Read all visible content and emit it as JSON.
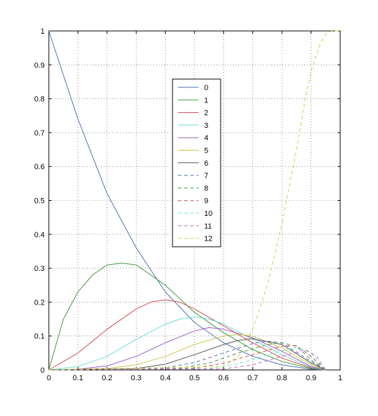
{
  "chart_data": {
    "type": "line",
    "title": "",
    "xlabel": "",
    "ylabel": "",
    "xlim": [
      0,
      1
    ],
    "ylim": [
      0,
      1
    ],
    "x_ticks": [
      "0",
      "0.1",
      "0.2",
      "0.3",
      "0.4",
      "0.5",
      "0.6",
      "0.7",
      "0.8",
      "0.9",
      "1"
    ],
    "y_ticks": [
      "0",
      "0.1",
      "0.2",
      "0.3",
      "0.4",
      "0.5",
      "0.6",
      "0.7",
      "0.8",
      "0.9",
      "1"
    ],
    "grid": true,
    "legend_position": "upper-center",
    "series": [
      {
        "name": "0",
        "style": "solid",
        "color": "#4a6fb5",
        "x": [
          0,
          0.1,
          0.2,
          0.3,
          0.4,
          0.5,
          0.6,
          0.7,
          0.8,
          0.9,
          0.95
        ],
        "y": [
          1,
          0.74,
          0.52,
          0.36,
          0.23,
          0.14,
          0.08,
          0.04,
          0.015,
          0.002,
          0
        ]
      },
      {
        "name": "1",
        "style": "solid",
        "color": "#3c9a3c",
        "x": [
          0,
          0.05,
          0.1,
          0.15,
          0.2,
          0.25,
          0.3,
          0.35,
          0.4,
          0.5,
          0.6,
          0.7,
          0.8,
          0.9,
          0.95
        ],
        "y": [
          0,
          0.15,
          0.23,
          0.28,
          0.31,
          0.315,
          0.31,
          0.28,
          0.25,
          0.17,
          0.11,
          0.06,
          0.025,
          0.004,
          0
        ]
      },
      {
        "name": "2",
        "style": "solid",
        "color": "#d24b4b",
        "x": [
          0,
          0.1,
          0.2,
          0.3,
          0.35,
          0.4,
          0.45,
          0.5,
          0.6,
          0.7,
          0.8,
          0.9,
          0.95
        ],
        "y": [
          0,
          0.05,
          0.12,
          0.18,
          0.2,
          0.207,
          0.2,
          0.18,
          0.13,
          0.08,
          0.035,
          0.006,
          0
        ]
      },
      {
        "name": "3",
        "style": "solid",
        "color": "#66e0cc",
        "x": [
          0,
          0.1,
          0.2,
          0.3,
          0.4,
          0.45,
          0.5,
          0.55,
          0.6,
          0.7,
          0.8,
          0.9,
          0.95
        ],
        "y": [
          0,
          0.01,
          0.04,
          0.09,
          0.135,
          0.15,
          0.157,
          0.15,
          0.135,
          0.09,
          0.045,
          0.008,
          0
        ]
      },
      {
        "name": "4",
        "style": "solid",
        "color": "#9a5acc",
        "x": [
          0,
          0.1,
          0.2,
          0.3,
          0.4,
          0.5,
          0.55,
          0.6,
          0.7,
          0.8,
          0.9,
          0.95
        ],
        "y": [
          0,
          0.002,
          0.012,
          0.04,
          0.08,
          0.115,
          0.125,
          0.12,
          0.095,
          0.055,
          0.01,
          0
        ]
      },
      {
        "name": "5",
        "style": "solid",
        "color": "#c9c94a",
        "x": [
          0,
          0.2,
          0.3,
          0.4,
          0.5,
          0.6,
          0.65,
          0.7,
          0.8,
          0.9,
          0.95
        ],
        "y": [
          0,
          0.004,
          0.015,
          0.04,
          0.075,
          0.1,
          0.105,
          0.1,
          0.065,
          0.015,
          0
        ]
      },
      {
        "name": "6",
        "style": "solid",
        "color": "#555555",
        "x": [
          0,
          0.3,
          0.4,
          0.5,
          0.6,
          0.65,
          0.7,
          0.8,
          0.9,
          0.95
        ],
        "y": [
          0,
          0.004,
          0.017,
          0.045,
          0.075,
          0.087,
          0.092,
          0.075,
          0.02,
          0
        ]
      },
      {
        "name": "7",
        "style": "dashed",
        "color": "#4a6fb5",
        "x": [
          0,
          0.4,
          0.5,
          0.6,
          0.7,
          0.75,
          0.8,
          0.9,
          0.95
        ],
        "y": [
          0,
          0.006,
          0.022,
          0.05,
          0.078,
          0.085,
          0.08,
          0.025,
          0
        ]
      },
      {
        "name": "8",
        "style": "dashed",
        "color": "#3c9a3c",
        "x": [
          0,
          0.45,
          0.55,
          0.65,
          0.75,
          0.8,
          0.85,
          0.9,
          0.95
        ],
        "y": [
          0,
          0.005,
          0.02,
          0.05,
          0.075,
          0.08,
          0.07,
          0.03,
          0
        ]
      },
      {
        "name": "9",
        "style": "dashed",
        "color": "#d24b4b",
        "x": [
          0,
          0.5,
          0.6,
          0.7,
          0.8,
          0.85,
          0.9,
          0.95
        ],
        "y": [
          0,
          0.005,
          0.02,
          0.045,
          0.07,
          0.072,
          0.04,
          0
        ]
      },
      {
        "name": "10",
        "style": "dashed",
        "color": "#66e0cc",
        "x": [
          0,
          0.55,
          0.65,
          0.75,
          0.85,
          0.9,
          0.95
        ],
        "y": [
          0,
          0.004,
          0.018,
          0.045,
          0.068,
          0.05,
          0
        ]
      },
      {
        "name": "11",
        "style": "dashed",
        "color": "#cc66cc",
        "x": [
          0,
          0.6,
          0.7,
          0.8,
          0.88,
          0.92,
          0.95
        ],
        "y": [
          0,
          0.003,
          0.015,
          0.04,
          0.06,
          0.04,
          0
        ]
      },
      {
        "name": "12",
        "style": "dashed",
        "color": "#c9d14a",
        "x": [
          0,
          0.6,
          0.65,
          0.7,
          0.75,
          0.8,
          0.85,
          0.88,
          0.9,
          0.93,
          0.95,
          0.97,
          1
        ],
        "y": [
          0,
          0.01,
          0.04,
          0.12,
          0.25,
          0.43,
          0.65,
          0.8,
          0.88,
          0.96,
          0.99,
          1,
          1
        ]
      }
    ]
  }
}
